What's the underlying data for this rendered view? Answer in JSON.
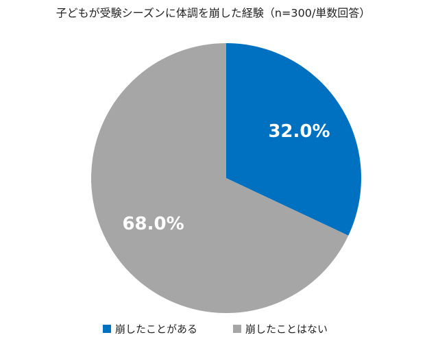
{
  "chart_data": {
    "type": "pie",
    "title": "子どもが受験シーズンに体調を崩した経験（n=300/単数回答）",
    "categories": [
      "崩したことがある",
      "崩したことはない"
    ],
    "values": [
      32.0,
      68.0
    ],
    "value_labels": [
      "32.0%",
      "68.0%"
    ],
    "colors": [
      "#0070c0",
      "#a6a6a6"
    ],
    "legend": "bottom"
  }
}
